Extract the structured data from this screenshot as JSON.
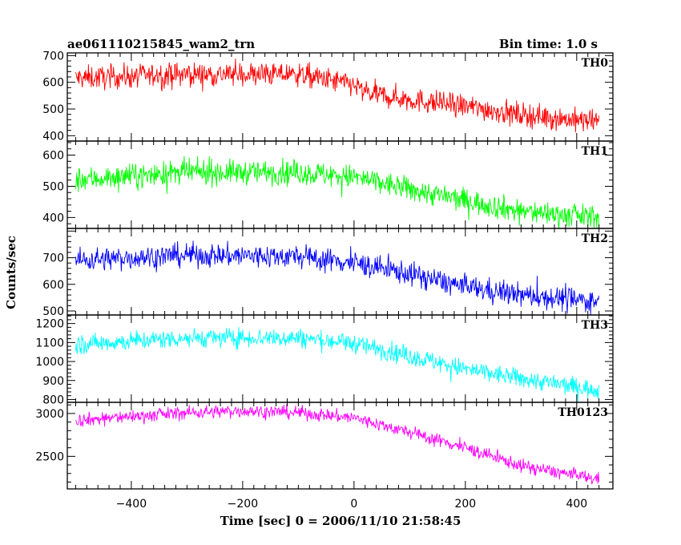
{
  "header": {
    "title": "ae061110215845_wam2_trn",
    "bin_time": "Bin time: 1.0 s"
  },
  "chart_data": {
    "type": "line",
    "title": "ae061110215845_wam2_trn",
    "subtitle": "Bin time: 1.0 s",
    "xlabel": "Time [sec] 0 = 2006/11/10 21:58:45",
    "ylabel": "Counts/sec",
    "xlim": [
      -515,
      465
    ],
    "x_ticks": [
      -400,
      -200,
      0,
      200,
      400
    ],
    "x_tick_labels": [
      "−400",
      "−200",
      "0",
      "200",
      "400"
    ],
    "x_range": [
      -500,
      440
    ],
    "grid": false,
    "panels": [
      {
        "name": "TH0",
        "color": "#ff0000",
        "ylim": [
          380,
          710
        ],
        "y_ticks": [
          400,
          500,
          600,
          700
        ],
        "trend_x": [
          -500,
          -300,
          -100,
          0,
          20,
          100,
          200,
          300,
          440
        ],
        "trend_y": [
          615,
          630,
          630,
          590,
          560,
          535,
          510,
          480,
          450
        ],
        "noise_amplitude": 40
      },
      {
        "name": "TH1",
        "color": "#00ff00",
        "ylim": [
          365,
          645
        ],
        "y_ticks": [
          400,
          500,
          600
        ],
        "trend_x": [
          -500,
          -300,
          -100,
          0,
          100,
          200,
          300,
          440
        ],
        "trend_y": [
          520,
          545,
          545,
          530,
          490,
          455,
          420,
          400
        ],
        "noise_amplitude": 35
      },
      {
        "name": "TH2",
        "color": "#0000ff",
        "ylim": [
          485,
          810
        ],
        "y_ticks": [
          500,
          600,
          700
        ],
        "trend_x": [
          -500,
          -300,
          -100,
          0,
          100,
          200,
          300,
          440
        ],
        "trend_y": [
          690,
          710,
          705,
          680,
          640,
          590,
          560,
          535
        ],
        "noise_amplitude": 40
      },
      {
        "name": "TH3",
        "color": "#00ffff",
        "ylim": [
          785,
          1245
        ],
        "y_ticks": [
          800,
          900,
          1000,
          1100,
          1200
        ],
        "y_tick_labels": [
          "800",
          "900",
          "1000",
          "1100",
          "1200"
        ],
        "trend_x": [
          -500,
          -300,
          -100,
          0,
          100,
          200,
          300,
          440
        ],
        "trend_y": [
          1090,
          1125,
          1125,
          1095,
          1030,
          960,
          910,
          850
        ],
        "noise_amplitude": 45
      },
      {
        "name": "TH0123",
        "color": "#ff00ff",
        "ylim": [
          2120,
          3130
        ],
        "y_ticks": [
          2500,
          3000
        ],
        "trend_x": [
          -500,
          -300,
          -200,
          -100,
          0,
          100,
          200,
          300,
          440
        ],
        "trend_y": [
          2920,
          3010,
          3030,
          3010,
          2950,
          2780,
          2600,
          2390,
          2230
        ],
        "noise_amplitude": 70
      }
    ]
  }
}
